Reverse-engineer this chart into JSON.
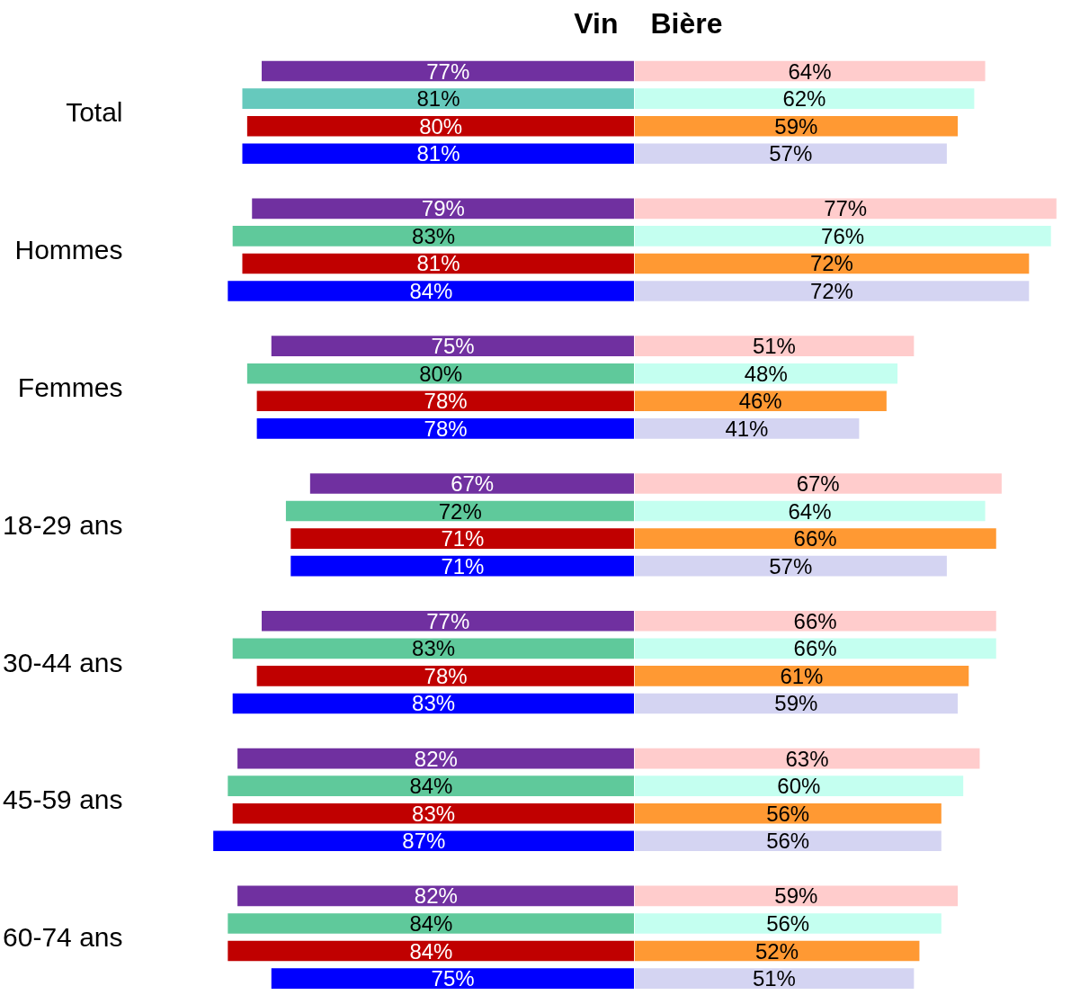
{
  "chart_data": [
    {
      "type": "bar",
      "orientation": "horizontal",
      "title": "Vin",
      "tick_labels": "y",
      "categories": [
        "Total",
        "Hommes",
        "Femmes",
        "18-29 ans",
        "30-44 ans",
        "45-59 ans",
        "60-74 ans"
      ],
      "series": [
        {
          "color": "#7030a0",
          "values": [
            77,
            79,
            75,
            67,
            77,
            82,
            82
          ],
          "value_labels": [
            "77%",
            "79%",
            "75%",
            "67%",
            "77%",
            "82%",
            "82%"
          ]
        },
        {
          "colors": [
            "#66c9bd",
            "#5fc99b",
            "#5fc99b",
            "#5fc99b",
            "#5fc99b",
            "#5fc99b",
            "#5fc99b"
          ],
          "values": [
            81,
            83,
            80,
            72,
            83,
            84,
            84
          ],
          "value_labels": [
            "81%",
            "83%",
            "80%",
            "72%",
            "83%",
            "84%",
            "84%"
          ]
        },
        {
          "color": "#c00000",
          "values": [
            80,
            81,
            78,
            71,
            78,
            83,
            84
          ],
          "value_labels": [
            "80%",
            "81%",
            "78%",
            "71%",
            "78%",
            "83%",
            "84%"
          ]
        },
        {
          "color": "#0000ff",
          "values": [
            81,
            84,
            78,
            71,
            83,
            87,
            75
          ],
          "value_labels": [
            "81%",
            "84%",
            "78%",
            "71%",
            "83%",
            "87%",
            "75%"
          ]
        }
      ]
    },
    {
      "type": "bar",
      "orientation": "horizontal",
      "title": "Bière",
      "tick_labels": false,
      "series": [
        {
          "color": "#ffcccc",
          "values": [
            64,
            77,
            51,
            67,
            66,
            63,
            59
          ],
          "value_labels": [
            "64%",
            "77%",
            "51%",
            "67%",
            "66%",
            "63%",
            "59%"
          ]
        },
        {
          "color": "#c4fff0",
          "values": [
            62,
            76,
            48,
            64,
            66,
            60,
            56
          ],
          "value_labels": [
            "62%",
            "76%",
            "48%",
            "64%",
            "66%",
            "60%",
            "56%"
          ]
        },
        {
          "color": "#ff9933",
          "values": [
            59,
            72,
            46,
            66,
            61,
            56,
            52
          ],
          "value_labels": [
            "59%",
            "72%",
            "46%",
            "66%",
            "61%",
            "56%",
            "52%"
          ]
        },
        {
          "color": "#d4d4f2",
          "values": [
            57,
            72,
            41,
            57,
            59,
            56,
            51
          ],
          "value_labels": [
            "57%",
            "72%",
            "41%",
            "57%",
            "59%",
            "56%",
            "51%"
          ]
        }
      ]
    }
  ]
}
